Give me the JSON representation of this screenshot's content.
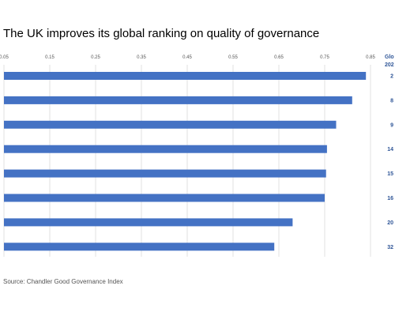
{
  "title": "The UK improves its global ranking on quality of governance",
  "source": "Source: Chandler Good Governance Index",
  "colors": {
    "bar": "#4472c4",
    "grid": "#d9d9d9",
    "rank": "#2e5597"
  },
  "chart_data": {
    "type": "bar",
    "orientation": "horizontal",
    "xlim": [
      0.05,
      0.85
    ],
    "ticks": [
      "0.05",
      "0.15",
      "0.25",
      "0.35",
      "0.45",
      "0.55",
      "0.65",
      "0.75",
      "0.85"
    ],
    "rank_header": [
      "Glo",
      "202"
    ],
    "categories": [
      "2",
      "8",
      "9",
      "14",
      "15",
      "16",
      "20",
      "32"
    ],
    "values": [
      0.84,
      0.81,
      0.775,
      0.755,
      0.753,
      0.75,
      0.68,
      0.64
    ],
    "grid": true
  }
}
